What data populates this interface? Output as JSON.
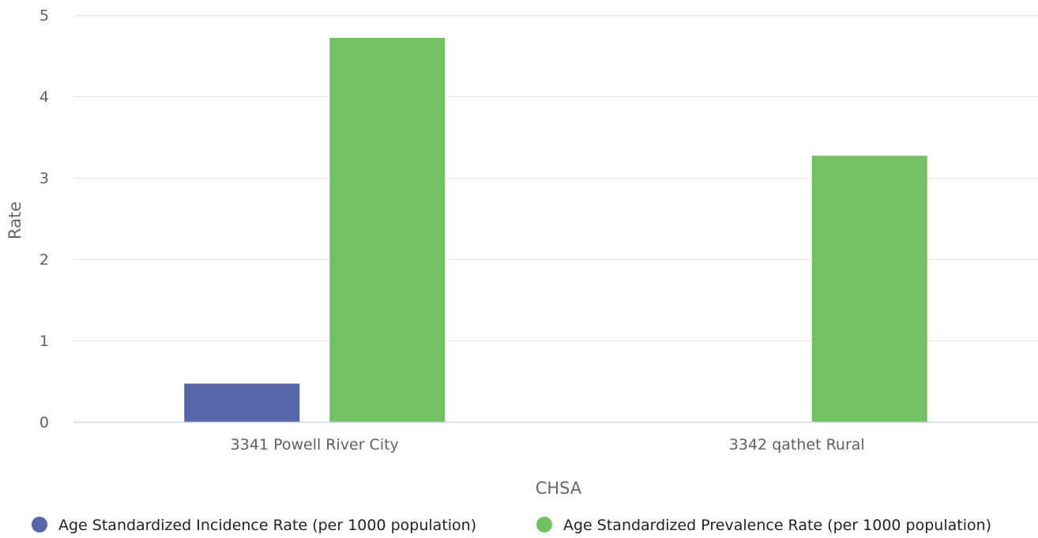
{
  "chart_data": {
    "type": "bar",
    "categories": [
      "3341 Powell River City",
      "3342 qathet Rural"
    ],
    "series": [
      {
        "name": "Age Standardized Incidence Rate (per 1000 population)",
        "color": "#5565a8",
        "values": [
          0.47,
          null
        ]
      },
      {
        "name": "Age Standardized Prevalence Rate (per 1000 population)",
        "color": "#72c162",
        "values": [
          4.72,
          3.27
        ]
      }
    ],
    "xlabel": "CHSA",
    "ylabel": "Rate",
    "ylim": [
      0,
      5
    ],
    "yticks": [
      0,
      1,
      2,
      3,
      4,
      5
    ],
    "grid": true,
    "legend_position": "bottom"
  }
}
